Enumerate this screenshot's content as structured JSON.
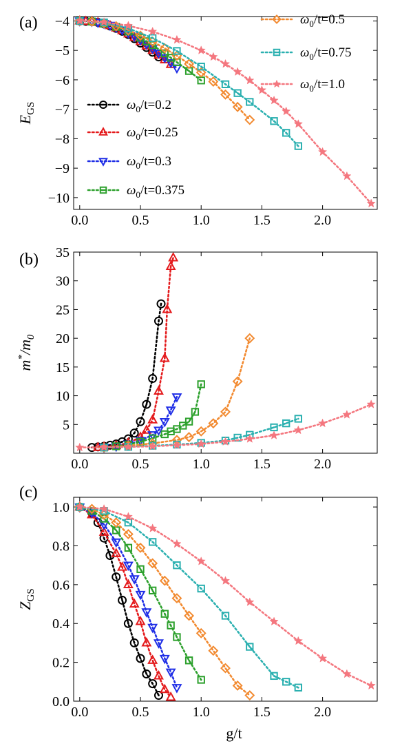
{
  "figure": {
    "xlabel": "g/t",
    "legend": [
      "ω0/t=0.2",
      "ω0/t=0.25",
      "ω0/t=0.3",
      "ω0/t=0.375",
      "ω0/t=0.5",
      "ω0/t=0.75",
      "ω0/t=1.0"
    ],
    "colors": {
      "w0.2": "#000000",
      "w0.25": "#e41a1c",
      "w0.3": "#1f2ee6",
      "w0.375": "#2ca02c",
      "w0.5": "#f28a30",
      "w0.75": "#2bb0b0",
      "w1.0": "#f4777f"
    },
    "markers": {
      "w0.2": "circle",
      "w0.25": "triangle-up",
      "w0.3": "triangle-down",
      "w0.375": "square",
      "w0.5": "diamond",
      "w0.75": "square",
      "w1.0": "star"
    }
  },
  "chart_data": [
    {
      "panel": "(a)",
      "type": "line",
      "ylabel": "E_GS",
      "xlim": [
        -0.05,
        2.45
      ],
      "ylim": [
        -10.4,
        -3.85
      ],
      "xticks": [
        0.0,
        0.5,
        1.0,
        1.5,
        2.0
      ],
      "yticks": [
        -4,
        -5,
        -6,
        -7,
        -8,
        -9,
        -10
      ],
      "series": [
        {
          "name": "ω0/t=0.2",
          "key": "w0.2",
          "x": [
            0.0,
            0.05,
            0.1,
            0.15,
            0.2,
            0.25,
            0.3,
            0.35,
            0.4,
            0.45,
            0.5,
            0.55,
            0.6,
            0.65
          ],
          "y": [
            -4.0,
            -4.01,
            -4.02,
            -4.05,
            -4.1,
            -4.17,
            -4.25,
            -4.35,
            -4.46,
            -4.6,
            -4.75,
            -4.9,
            -5.06,
            -5.22
          ]
        },
        {
          "name": "ω0/t=0.25",
          "key": "w0.25",
          "x": [
            0.0,
            0.05,
            0.1,
            0.15,
            0.2,
            0.25,
            0.3,
            0.35,
            0.4,
            0.45,
            0.5,
            0.55,
            0.6,
            0.65,
            0.7,
            0.75
          ],
          "y": [
            -4.0,
            -4.01,
            -4.02,
            -4.05,
            -4.1,
            -4.16,
            -4.24,
            -4.33,
            -4.44,
            -4.56,
            -4.7,
            -4.85,
            -5.0,
            -5.16,
            -5.32,
            -5.48
          ]
        },
        {
          "name": "ω0/t=0.3",
          "key": "w0.3",
          "x": [
            0.0,
            0.1,
            0.15,
            0.2,
            0.25,
            0.3,
            0.35,
            0.4,
            0.45,
            0.5,
            0.55,
            0.6,
            0.65,
            0.7,
            0.75,
            0.8
          ],
          "y": [
            -4.0,
            -4.02,
            -4.05,
            -4.09,
            -4.15,
            -4.22,
            -4.31,
            -4.41,
            -4.52,
            -4.65,
            -4.79,
            -4.94,
            -5.09,
            -5.25,
            -5.42,
            -5.6
          ]
        },
        {
          "name": "ω0/t=0.375",
          "key": "w0.375",
          "x": [
            0.0,
            0.1,
            0.2,
            0.3,
            0.4,
            0.5,
            0.55,
            0.6,
            0.7,
            0.75,
            0.8,
            0.9,
            1.0
          ],
          "y": [
            -4.0,
            -4.02,
            -4.09,
            -4.2,
            -4.36,
            -4.57,
            -4.69,
            -4.82,
            -5.1,
            -5.25,
            -5.4,
            -5.7,
            -6.02
          ]
        },
        {
          "name": "ω0/t=0.5",
          "key": "w0.5",
          "x": [
            0.0,
            0.1,
            0.2,
            0.3,
            0.4,
            0.5,
            0.6,
            0.7,
            0.8,
            0.9,
            1.0,
            1.1,
            1.2,
            1.3,
            1.4
          ],
          "y": [
            -4.0,
            -4.02,
            -4.08,
            -4.18,
            -4.32,
            -4.5,
            -4.7,
            -4.93,
            -5.18,
            -5.46,
            -5.75,
            -6.06,
            -6.5,
            -6.92,
            -7.36
          ]
        },
        {
          "name": "ω0/t=0.75",
          "key": "w0.75",
          "x": [
            0.0,
            0.2,
            0.4,
            0.6,
            0.8,
            1.0,
            1.2,
            1.3,
            1.4,
            1.6,
            1.7,
            1.8
          ],
          "y": [
            -4.0,
            -4.05,
            -4.25,
            -4.58,
            -5.02,
            -5.55,
            -6.15,
            -6.45,
            -6.75,
            -7.4,
            -7.8,
            -8.25
          ]
        },
        {
          "name": "ω0/t=1.0",
          "key": "w1.0",
          "x": [
            0.0,
            0.2,
            0.4,
            0.6,
            0.8,
            1.0,
            1.1,
            1.2,
            1.3,
            1.4,
            1.5,
            1.6,
            1.7,
            1.8,
            2.0,
            2.2,
            2.4
          ],
          "y": [
            -4.0,
            -4.04,
            -4.16,
            -4.36,
            -4.64,
            -5.0,
            -5.22,
            -5.46,
            -5.73,
            -6.02,
            -6.35,
            -6.7,
            -7.07,
            -7.5,
            -8.45,
            -9.27,
            -10.2
          ]
        }
      ]
    },
    {
      "panel": "(b)",
      "type": "line",
      "ylabel": "m*/m0",
      "xlim": [
        -0.05,
        2.45
      ],
      "ylim": [
        0,
        35
      ],
      "xticks": [
        0.0,
        0.5,
        1.0,
        1.5,
        2.0
      ],
      "yticks": [
        5,
        10,
        15,
        20,
        25,
        30,
        35
      ],
      "series": [
        {
          "name": "ω0/t=0.2",
          "key": "w0.2",
          "x": [
            0.1,
            0.15,
            0.2,
            0.25,
            0.3,
            0.35,
            0.4,
            0.45,
            0.5,
            0.55,
            0.6,
            0.65,
            0.67
          ],
          "y": [
            1.0,
            1.1,
            1.2,
            1.4,
            1.6,
            2.0,
            2.5,
            3.5,
            5.5,
            8.5,
            13.0,
            23.0,
            26.0
          ]
        },
        {
          "name": "ω0/t=0.25",
          "key": "w0.25",
          "x": [
            0.15,
            0.2,
            0.3,
            0.4,
            0.5,
            0.55,
            0.6,
            0.65,
            0.7,
            0.72,
            0.75,
            0.77
          ],
          "y": [
            1.0,
            1.1,
            1.3,
            1.8,
            2.8,
            4.0,
            5.8,
            10.8,
            16.5,
            25.0,
            32.5,
            34.0
          ]
        },
        {
          "name": "ω0/t=0.3",
          "key": "w0.3",
          "x": [
            0.2,
            0.3,
            0.4,
            0.5,
            0.6,
            0.65,
            0.7,
            0.75,
            0.8
          ],
          "y": [
            1.0,
            1.2,
            1.6,
            2.2,
            3.2,
            4.0,
            5.5,
            7.5,
            9.8
          ]
        },
        {
          "name": "ω0/t=0.375",
          "key": "w0.375",
          "x": [
            0.2,
            0.3,
            0.4,
            0.5,
            0.6,
            0.7,
            0.75,
            0.8,
            0.85,
            0.9,
            0.95,
            1.0
          ],
          "y": [
            1.0,
            1.2,
            1.5,
            2.0,
            2.6,
            3.3,
            3.8,
            4.2,
            4.8,
            5.5,
            7.2,
            12.0
          ]
        },
        {
          "name": "ω0/t=0.5",
          "key": "w0.5",
          "x": [
            0.2,
            0.4,
            0.6,
            0.8,
            0.9,
            1.0,
            1.1,
            1.2,
            1.3,
            1.4
          ],
          "y": [
            1.0,
            1.3,
            1.7,
            2.3,
            2.8,
            3.8,
            5.2,
            7.2,
            12.5,
            20.0
          ]
        },
        {
          "name": "ω0/t=0.75",
          "key": "w0.75",
          "x": [
            0.2,
            0.4,
            0.6,
            0.8,
            1.0,
            1.2,
            1.3,
            1.4,
            1.6,
            1.7,
            1.8
          ],
          "y": [
            1.0,
            1.1,
            1.3,
            1.5,
            1.8,
            2.2,
            2.7,
            3.2,
            4.5,
            5.2,
            6.0
          ]
        },
        {
          "name": "ω0/t=1.0",
          "key": "w1.0",
          "x": [
            0.0,
            0.2,
            0.4,
            0.6,
            0.8,
            1.0,
            1.2,
            1.4,
            1.6,
            1.8,
            2.0,
            2.2,
            2.4
          ],
          "y": [
            1.0,
            1.05,
            1.1,
            1.2,
            1.4,
            1.6,
            2.0,
            2.5,
            3.1,
            4.0,
            5.2,
            6.7,
            8.5
          ]
        }
      ]
    },
    {
      "panel": "(c)",
      "type": "line",
      "ylabel": "Z_GS",
      "xlim": [
        -0.05,
        2.45
      ],
      "ylim": [
        0,
        1.05
      ],
      "xticks": [
        0.0,
        0.5,
        1.0,
        1.5,
        2.0
      ],
      "yticks": [
        0.0,
        0.2,
        0.4,
        0.6,
        0.8,
        1.0
      ],
      "series": [
        {
          "name": "ω0/t=0.2",
          "key": "w0.2",
          "x": [
            0.0,
            0.1,
            0.15,
            0.2,
            0.25,
            0.3,
            0.35,
            0.4,
            0.45,
            0.5,
            0.55,
            0.6,
            0.65
          ],
          "y": [
            1.0,
            0.97,
            0.92,
            0.84,
            0.75,
            0.64,
            0.52,
            0.4,
            0.3,
            0.22,
            0.14,
            0.09,
            0.03
          ]
        },
        {
          "name": "ω0/t=0.25",
          "key": "w0.25",
          "x": [
            0.0,
            0.1,
            0.2,
            0.3,
            0.35,
            0.4,
            0.45,
            0.5,
            0.55,
            0.6,
            0.65,
            0.7,
            0.75
          ],
          "y": [
            1.0,
            0.96,
            0.87,
            0.76,
            0.69,
            0.6,
            0.5,
            0.41,
            0.3,
            0.21,
            0.13,
            0.06,
            0.02
          ]
        },
        {
          "name": "ω0/t=0.3",
          "key": "w0.3",
          "x": [
            0.0,
            0.1,
            0.2,
            0.3,
            0.4,
            0.45,
            0.5,
            0.55,
            0.6,
            0.65,
            0.7,
            0.75,
            0.8
          ],
          "y": [
            1.0,
            0.97,
            0.91,
            0.82,
            0.7,
            0.63,
            0.55,
            0.46,
            0.38,
            0.3,
            0.22,
            0.15,
            0.07
          ]
        },
        {
          "name": "ω0/t=0.375",
          "key": "w0.375",
          "x": [
            0.0,
            0.1,
            0.2,
            0.3,
            0.4,
            0.5,
            0.6,
            0.7,
            0.75,
            0.8,
            0.9,
            1.0
          ],
          "y": [
            1.0,
            0.98,
            0.94,
            0.88,
            0.79,
            0.68,
            0.57,
            0.45,
            0.39,
            0.33,
            0.21,
            0.11
          ]
        },
        {
          "name": "ω0/t=0.5",
          "key": "w0.5",
          "x": [
            0.0,
            0.1,
            0.2,
            0.3,
            0.4,
            0.5,
            0.6,
            0.7,
            0.8,
            0.9,
            1.0,
            1.1,
            1.2,
            1.3,
            1.4
          ],
          "y": [
            1.0,
            0.99,
            0.96,
            0.92,
            0.86,
            0.79,
            0.71,
            0.62,
            0.53,
            0.44,
            0.35,
            0.26,
            0.17,
            0.08,
            0.03
          ]
        },
        {
          "name": "ω0/t=0.75",
          "key": "w0.75",
          "x": [
            0.0,
            0.2,
            0.4,
            0.6,
            0.8,
            1.0,
            1.2,
            1.4,
            1.6,
            1.7,
            1.8
          ],
          "y": [
            1.0,
            0.98,
            0.92,
            0.82,
            0.7,
            0.58,
            0.44,
            0.28,
            0.13,
            0.1,
            0.07
          ]
        },
        {
          "name": "ω0/t=1.0",
          "key": "w1.0",
          "x": [
            0.0,
            0.2,
            0.4,
            0.6,
            0.8,
            1.0,
            1.2,
            1.4,
            1.6,
            1.8,
            2.0,
            2.2,
            2.4
          ],
          "y": [
            1.0,
            0.99,
            0.95,
            0.89,
            0.81,
            0.72,
            0.62,
            0.51,
            0.41,
            0.31,
            0.22,
            0.14,
            0.08
          ]
        }
      ]
    }
  ]
}
